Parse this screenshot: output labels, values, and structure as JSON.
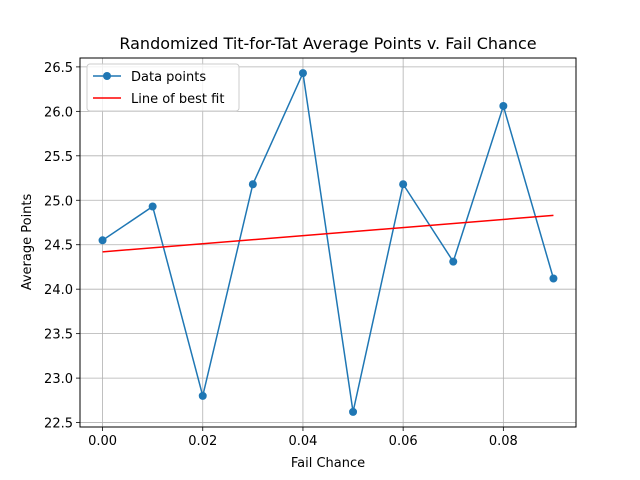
{
  "chart_data": {
    "type": "line",
    "title": "Randomized Tit-for-Tat Average Points v. Fail Chance",
    "xlabel": "Fail Chance",
    "ylabel": "Average Points",
    "xlim": [
      -0.0045,
      0.0945
    ],
    "ylim": [
      22.45,
      26.6
    ],
    "xticks": [
      0.0,
      0.02,
      0.04,
      0.06,
      0.08
    ],
    "xtick_labels": [
      "0.00",
      "0.02",
      "0.04",
      "0.06",
      "0.08"
    ],
    "yticks": [
      22.5,
      23.0,
      23.5,
      24.0,
      24.5,
      25.0,
      25.5,
      26.0,
      26.5
    ],
    "ytick_labels": [
      "22.5",
      "23.0",
      "23.5",
      "24.0",
      "24.5",
      "25.0",
      "25.5",
      "26.0",
      "26.5"
    ],
    "grid": true,
    "legend_position": "top-left",
    "series": [
      {
        "name": "Data points",
        "color": "#1f77b4",
        "marker": "circle",
        "x": [
          0.0,
          0.01,
          0.02,
          0.03,
          0.04,
          0.05,
          0.06,
          0.07,
          0.08,
          0.09
        ],
        "y": [
          24.55,
          24.93,
          22.8,
          25.18,
          26.43,
          22.62,
          25.18,
          24.31,
          26.06,
          24.12
        ]
      },
      {
        "name": "Line of best fit",
        "color": "#ff0000",
        "marker": "none",
        "x": [
          0.0,
          0.09
        ],
        "y": [
          24.42,
          24.83
        ]
      }
    ]
  }
}
